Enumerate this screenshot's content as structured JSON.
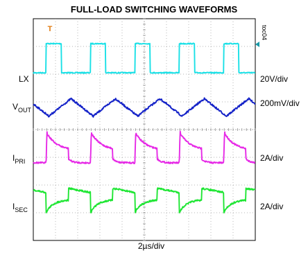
{
  "chart_data": {
    "type": "line",
    "title": "FULL-LOAD SWITCHING WAVEFORMS",
    "tag": "toc04",
    "xlabel": "2µs/div",
    "grid": true,
    "divisions": {
      "x": 10,
      "y": 8
    },
    "trigger_marker": "T",
    "series": [
      {
        "name": "LX",
        "sub": "",
        "scale": "20V/div",
        "color": "#19e0e6",
        "shape": "square",
        "period_div": 2.0,
        "duty": 0.34,
        "edges_div": [
          0.58,
          4.58,
          2.58,
          6.58
        ],
        "high_div": 1.05,
        "low_div": 0.0
      },
      {
        "name": "V",
        "sub": "OUT",
        "scale": "200mV/div",
        "color": "#1523c8",
        "shape": "triangle",
        "period_div": 2.0,
        "amplitude_div": 0.35
      },
      {
        "name": "I",
        "sub": "PRI",
        "scale": "2A/div",
        "color": "#e629e6",
        "shape": "decay",
        "period_div": 2.0,
        "peak_div": 1.05,
        "base_div": 0.0
      },
      {
        "name": "I",
        "sub": "SEC",
        "scale": "2A/div",
        "color": "#1ee633",
        "shape": "sawtooth",
        "period_div": 2.0,
        "high_div": 0.45,
        "low_div": -0.45
      }
    ]
  }
}
